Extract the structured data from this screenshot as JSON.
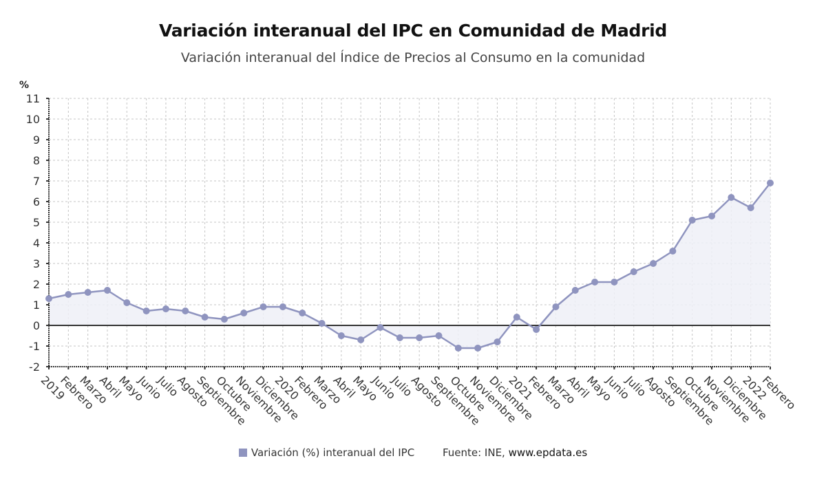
{
  "chart_data": {
    "type": "line",
    "title": "Variación interanual del IPC en Comunidad de Madrid",
    "subtitle": "Variación interanual del Índice de Precios al Consumo en la comunidad",
    "ylabel": "%",
    "xlabel": "",
    "ylim": [
      -2,
      11
    ],
    "yticks": [
      11,
      10,
      9,
      8,
      7,
      6,
      5,
      4,
      3,
      2,
      1,
      0,
      -1,
      -2
    ],
    "grid": true,
    "categories": [
      "2019",
      "Febrero",
      "Marzo",
      "Abril",
      "Mayo",
      "Junio",
      "Julio",
      "Agosto",
      "Septiembre",
      "Octubre",
      "Noviembre",
      "Diciembre",
      "2020",
      "Febrero",
      "Marzo",
      "Abril",
      "Mayo",
      "Junio",
      "Julio",
      "Agosto",
      "Septiembre",
      "Octubre",
      "Noviembre",
      "Diciembre",
      "2021",
      "Febrero",
      "Marzo",
      "Abril",
      "Mayo",
      "Junio",
      "Julio",
      "Agosto",
      "Septiembre",
      "Octubre",
      "Noviembre",
      "Diciembre",
      "2022",
      "Febrero"
    ],
    "series": [
      {
        "name": "Variación (%) interanual del IPC",
        "color": "#8f94bf",
        "values": [
          1.3,
          1.5,
          1.6,
          1.7,
          1.1,
          0.7,
          0.8,
          0.7,
          0.4,
          0.3,
          0.6,
          0.9,
          0.9,
          0.6,
          0.1,
          -0.5,
          -0.7,
          -0.1,
          -0.6,
          -0.6,
          -0.5,
          -1.1,
          -1.1,
          -0.8,
          0.4,
          -0.2,
          0.9,
          1.7,
          2.1,
          2.1,
          2.6,
          3.0,
          3.6,
          5.1,
          5.3,
          6.2,
          5.7,
          6.9
        ]
      }
    ],
    "legend": {
      "position": "bottom",
      "label": "Variación (%) interanual del IPC"
    },
    "source_prefix": "Fuente: INE, ",
    "source_link": "www.epdata.es"
  },
  "colors": {
    "line": "#8f94bf",
    "area": "#eef0f7",
    "zero_line": "#333333",
    "grid": "#c4c4c4"
  }
}
